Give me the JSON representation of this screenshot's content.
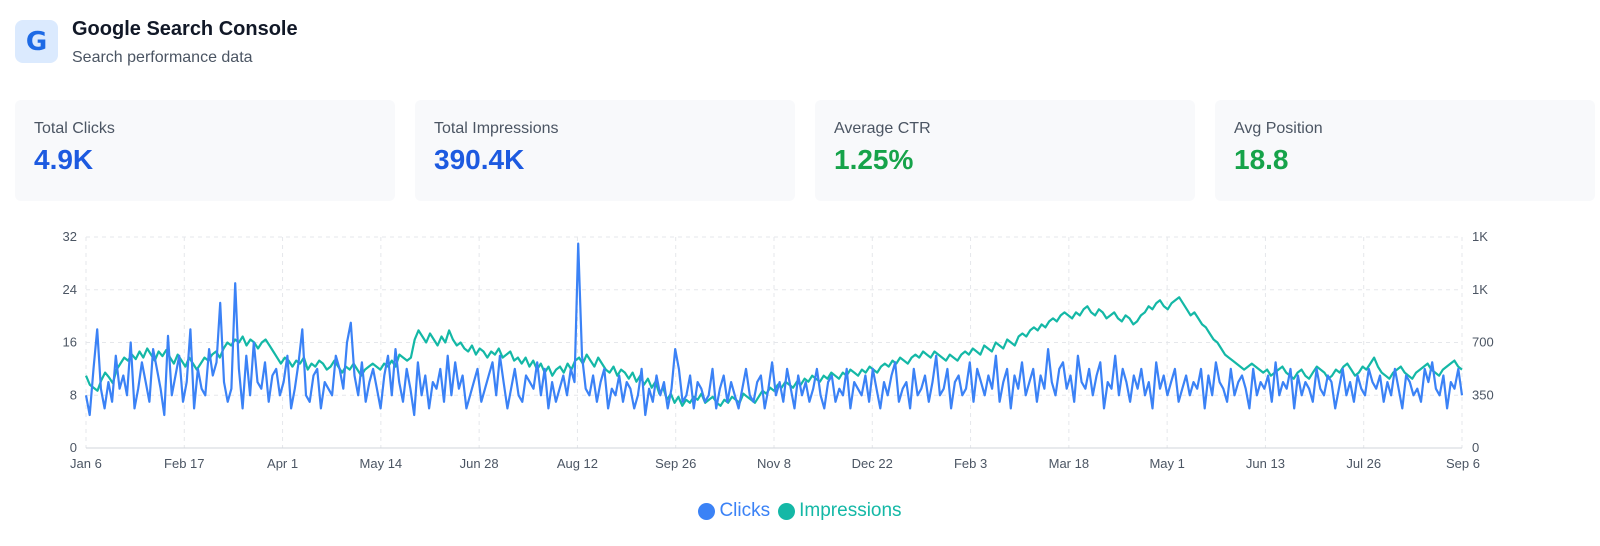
{
  "header": {
    "logo_letter": "G",
    "title": "Google Search Console",
    "subtitle": "Search performance data"
  },
  "cards": [
    {
      "label": "Total Clicks",
      "value": "4.9K",
      "color": "#1d5ae0"
    },
    {
      "label": "Total Impressions",
      "value": "390.4K",
      "color": "#1d5ae0"
    },
    {
      "label": "Average CTR",
      "value": "1.25%",
      "color": "#16a34a"
    },
    {
      "label": "Avg Position",
      "value": "18.8",
      "color": "#16a34a"
    }
  ],
  "chart_data": {
    "type": "line",
    "x_ticks": [
      "Jan 6",
      "Feb 17",
      "Apr 1",
      "May 14",
      "Jun 28",
      "Aug 12",
      "Sep 26",
      "Nov 8",
      "Dec 22",
      "Feb 3",
      "Mar 18",
      "May 1",
      "Jun 13",
      "Jul 26",
      "Sep 6"
    ],
    "y_left_ticks": [
      "0",
      "8",
      "16",
      "24",
      "32"
    ],
    "y_right_ticks": [
      "0",
      "350",
      "700",
      "1K",
      "1K"
    ],
    "y_left_range": [
      0,
      32
    ],
    "y_right_range": [
      0,
      1400
    ],
    "grid": "dashed",
    "legend_position": "bottom-center",
    "series": [
      {
        "name": "Clicks",
        "axis": "left",
        "color": "#3b82f6",
        "values": [
          8,
          5,
          12,
          18,
          9,
          6,
          10,
          7,
          14,
          9,
          11,
          8,
          16,
          6,
          9,
          13,
          10,
          7,
          15,
          12,
          9,
          5,
          17,
          8,
          11,
          14,
          7,
          10,
          18,
          6,
          12,
          9,
          8,
          15,
          11,
          13,
          22,
          10,
          7,
          9,
          25,
          12,
          6,
          14,
          8,
          16,
          10,
          9,
          13,
          7,
          11,
          12,
          8,
          10,
          14,
          6,
          9,
          13,
          18,
          8,
          7,
          11,
          12,
          6,
          10,
          9,
          8,
          14,
          12,
          9,
          16,
          19,
          11,
          8,
          13,
          7,
          10,
          12,
          9,
          6,
          11,
          14,
          8,
          15,
          10,
          7,
          12,
          9,
          5,
          13,
          8,
          11,
          6,
          10,
          9,
          12,
          7,
          14,
          8,
          13,
          9,
          11,
          6,
          8,
          10,
          12,
          7,
          9,
          11,
          13,
          8,
          14,
          10,
          6,
          9,
          12,
          8,
          7,
          11,
          10,
          9,
          13,
          8,
          12,
          6,
          10,
          7,
          9,
          11,
          8,
          12,
          10,
          31,
          14,
          9,
          8,
          11,
          7,
          10,
          12,
          6,
          9,
          8,
          11,
          7,
          10,
          9,
          6,
          8,
          12,
          5,
          9,
          7,
          11,
          8,
          10,
          6,
          9,
          15,
          12,
          7,
          8,
          11,
          6,
          10,
          9,
          7,
          8,
          12,
          6,
          9,
          11,
          7,
          10,
          8,
          6,
          9,
          12,
          8,
          7,
          10,
          11,
          6,
          9,
          13,
          8,
          10,
          7,
          12,
          9,
          6,
          11,
          8,
          10,
          7,
          9,
          12,
          8,
          6,
          10,
          11,
          7,
          9,
          8,
          12,
          6,
          10,
          9,
          8,
          11,
          7,
          12,
          9,
          6,
          10,
          8,
          11,
          13,
          7,
          9,
          10,
          6,
          12,
          8,
          9,
          11,
          7,
          10,
          14,
          8,
          9,
          12,
          6,
          10,
          11,
          8,
          9,
          13,
          7,
          12,
          10,
          8,
          11,
          9,
          14,
          7,
          10,
          12,
          6,
          11,
          9,
          13,
          8,
          10,
          12,
          7,
          11,
          9,
          15,
          10,
          8,
          12,
          13,
          9,
          11,
          7,
          14,
          10,
          9,
          12,
          8,
          11,
          13,
          6,
          10,
          9,
          14,
          8,
          12,
          10,
          7,
          11,
          9,
          12,
          8,
          10,
          6,
          13,
          9,
          11,
          8,
          10,
          12,
          7,
          9,
          11,
          8,
          10,
          9,
          12,
          6,
          11,
          8,
          13,
          10,
          9,
          7,
          12,
          8,
          10,
          11,
          9,
          6,
          12,
          8,
          10,
          9,
          11,
          7,
          13,
          8,
          10,
          9,
          12,
          6,
          11,
          8,
          10,
          9,
          7,
          12,
          9,
          8,
          11,
          10,
          6,
          9,
          12,
          8,
          10,
          7,
          11,
          9,
          8,
          12,
          10,
          9,
          11,
          7,
          10,
          8,
          12,
          9,
          6,
          11,
          10,
          8,
          9,
          7,
          12,
          10,
          13,
          9,
          8,
          11,
          6,
          10,
          9,
          12,
          8
        ]
      },
      {
        "name": "Impressions",
        "axis": "right",
        "color": "#14b8a6",
        "values": [
          480,
          420,
          400,
          380,
          450,
          500,
          470,
          430,
          520,
          560,
          600,
          580,
          620,
          590,
          640,
          600,
          660,
          620,
          580,
          640,
          610,
          650,
          600,
          560,
          620,
          580,
          540,
          600,
          560,
          520,
          560,
          600,
          580,
          620,
          640,
          600,
          660,
          700,
          680,
          720,
          700,
          740,
          680,
          720,
          700,
          660,
          700,
          720,
          680,
          640,
          600,
          560,
          600,
          580,
          540,
          580,
          560,
          600,
          520,
          560,
          540,
          580,
          560,
          520,
          540,
          580,
          540,
          500,
          540,
          520,
          560,
          520,
          480,
          520,
          540,
          560,
          540,
          520,
          560,
          540,
          580,
          540,
          620,
          600,
          580,
          600,
          720,
          780,
          740,
          700,
          760,
          720,
          680,
          740,
          700,
          780,
          720,
          680,
          700,
          660,
          640,
          680,
          620,
          660,
          640,
          600,
          640,
          620,
          660,
          600,
          620,
          640,
          580,
          600,
          560,
          600,
          540,
          580,
          520,
          560,
          500,
          540,
          480,
          520,
          540,
          500,
          560,
          520,
          580,
          600,
          560,
          620,
          580,
          540,
          600,
          560,
          520,
          500,
          540,
          480,
          520,
          500,
          460,
          500,
          440,
          480,
          420,
          460,
          400,
          440,
          360,
          400,
          320,
          360,
          300,
          340,
          280,
          320,
          300,
          340,
          320,
          360,
          300,
          320,
          340,
          300,
          280,
          320,
          300,
          340,
          320,
          300,
          360,
          340,
          320,
          300,
          340,
          380,
          360,
          400,
          380,
          420,
          400,
          440,
          420,
          400,
          440,
          420,
          460,
          440,
          480,
          460,
          440,
          480,
          460,
          500,
          480,
          460,
          500,
          480,
          520,
          500,
          480,
          520,
          500,
          540,
          520,
          500,
          540,
          560,
          540,
          580,
          560,
          600,
          580,
          560,
          600,
          620,
          600,
          640,
          620,
          600,
          640,
          620,
          600,
          580,
          620,
          600,
          580,
          620,
          640,
          620,
          660,
          640,
          620,
          680,
          660,
          640,
          700,
          680,
          660,
          720,
          700,
          680,
          740,
          760,
          740,
          780,
          800,
          780,
          820,
          800,
          840,
          860,
          840,
          880,
          900,
          880,
          860,
          900,
          880,
          920,
          940,
          900,
          880,
          920,
          900,
          860,
          880,
          900,
          860,
          840,
          880,
          860,
          820,
          840,
          880,
          900,
          940,
          920,
          960,
          980,
          940,
          920,
          960,
          980,
          1000,
          960,
          920,
          880,
          900,
          860,
          820,
          800,
          760,
          720,
          700,
          660,
          620,
          600,
          580,
          560,
          540,
          520,
          540,
          560,
          540,
          520,
          500,
          520,
          480,
          500,
          520,
          540,
          500,
          480,
          460,
          500,
          520,
          480,
          460,
          500,
          540,
          520,
          500,
          460,
          480,
          520,
          500,
          540,
          560,
          520,
          480,
          500,
          540,
          520,
          560,
          600,
          540,
          500,
          480,
          460,
          500,
          520,
          540,
          500,
          480,
          460,
          500,
          520,
          540,
          560,
          520,
          500,
          480,
          520,
          540,
          560,
          580,
          540,
          520
        ]
      }
    ]
  }
}
